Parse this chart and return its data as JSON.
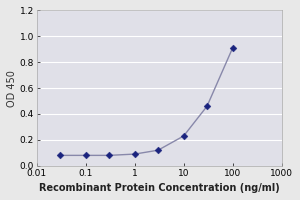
{
  "x_values": [
    0.03,
    0.1,
    0.3,
    1,
    3,
    10,
    30,
    100
  ],
  "y_values": [
    0.08,
    0.08,
    0.08,
    0.09,
    0.12,
    0.23,
    0.46,
    0.91
  ],
  "line_color": "#8888aa",
  "marker_color": "#1a237e",
  "marker_size": 3.5,
  "line_width": 1.0,
  "xlabel": "Recombinant Protein Concentration (ng/ml)",
  "ylabel": "OD 450",
  "xlim": [
    0.01,
    1000
  ],
  "ylim": [
    0.0,
    1.2
  ],
  "yticks": [
    0.0,
    0.2,
    0.4,
    0.6,
    0.8,
    1.0,
    1.2
  ],
  "xticks": [
    0.01,
    0.1,
    1,
    10,
    100,
    1000
  ],
  "xtick_labels": [
    "0.01",
    "0.1",
    "1",
    "10",
    "100",
    "1000"
  ],
  "background_color": "#e8e8e8",
  "plot_bg_color": "#e0e0e8",
  "grid_color": "#ffffff",
  "xlabel_fontsize": 7.0,
  "ylabel_fontsize": 7.0,
  "tick_fontsize": 6.5
}
